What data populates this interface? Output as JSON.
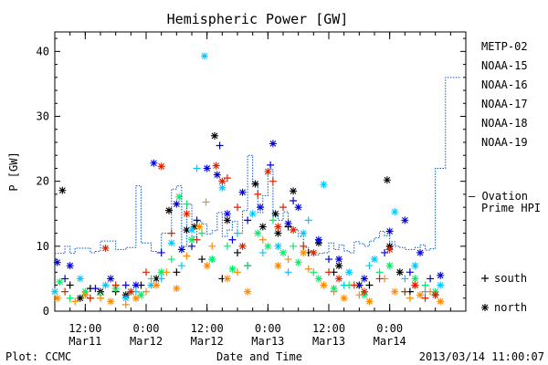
{
  "chart_data": {
    "type": "scatter",
    "title": "Hemispheric Power [GW]",
    "ylabel": "P [GW]",
    "xlabel": "Date and Time",
    "ylim": [
      0,
      43
    ],
    "yticks": [
      0,
      10,
      20,
      30,
      40
    ],
    "xlim": [
      0,
      81
    ],
    "x_unit": "hours since 2013-03-11 06:00",
    "xticks": [
      {
        "x": 6,
        "line1": "12:00",
        "line2": "Mar11"
      },
      {
        "x": 18,
        "line1": "0:00",
        "line2": "Mar12"
      },
      {
        "x": 30,
        "line1": "12:00",
        "line2": "Mar12"
      },
      {
        "x": 42,
        "line1": "0:00",
        "line2": "Mar13"
      },
      {
        "x": 54,
        "line1": "12:00",
        "line2": "Mar13"
      },
      {
        "x": 66,
        "line1": "0:00",
        "line2": "Mar14"
      }
    ],
    "footer_left": "Plot: CCMC",
    "footer_right": "2013/03/14 11:00:07",
    "markers_legend": [
      {
        "symbol": "+",
        "label": "south"
      },
      {
        "symbol": "*",
        "label": "north"
      }
    ],
    "series": [
      {
        "name": "METP-02",
        "color": "#000000",
        "north": [
          [
            1.5,
            18.6
          ],
          [
            20,
            5
          ],
          [
            22.5,
            15.5
          ],
          [
            27.5,
            13
          ],
          [
            31.5,
            27
          ],
          [
            34,
            14
          ],
          [
            39.5,
            19.6
          ],
          [
            41,
            13
          ],
          [
            43.5,
            15
          ],
          [
            47,
            18.5
          ],
          [
            52,
            10.5
          ],
          [
            56,
            7
          ],
          [
            60,
            4
          ],
          [
            65.5,
            20.2
          ],
          [
            68,
            6
          ],
          [
            71,
            4
          ],
          [
            9,
            3
          ],
          [
            14,
            2.5
          ],
          [
            5,
            2
          ],
          [
            26,
            12.5
          ],
          [
            44,
            12
          ],
          [
            66,
            10
          ]
        ],
        "south": [
          [
            3,
            4
          ],
          [
            7,
            3.5
          ],
          [
            12,
            3
          ],
          [
            17,
            4
          ],
          [
            24,
            6
          ],
          [
            29,
            8
          ],
          [
            36,
            9
          ],
          [
            46,
            13
          ],
          [
            50,
            9
          ],
          [
            55,
            6
          ],
          [
            62,
            4
          ],
          [
            70,
            3
          ],
          [
            75,
            2.5
          ],
          [
            33,
            5
          ],
          [
            38,
            7
          ]
        ]
      },
      {
        "name": "NOAA-15",
        "color": "#0000dd",
        "north": [
          [
            0.5,
            7.5
          ],
          [
            3,
            7
          ],
          [
            11,
            5
          ],
          [
            16,
            4
          ],
          [
            19.5,
            22.8
          ],
          [
            24,
            16.5
          ],
          [
            25,
            9.5
          ],
          [
            30,
            22
          ],
          [
            32,
            21
          ],
          [
            34,
            15
          ],
          [
            37,
            18.3
          ],
          [
            43,
            25.8
          ],
          [
            46,
            13.5
          ],
          [
            48,
            16
          ],
          [
            52,
            11
          ],
          [
            56,
            8
          ],
          [
            61,
            5
          ],
          [
            66,
            12.3
          ],
          [
            69,
            14
          ],
          [
            72,
            9
          ],
          [
            76,
            5.5
          ],
          [
            40.5,
            16
          ]
        ],
        "south": [
          [
            2,
            5
          ],
          [
            8,
            3.5
          ],
          [
            14,
            4
          ],
          [
            21,
            9
          ],
          [
            27,
            10
          ],
          [
            32.5,
            25.5
          ],
          [
            38,
            14
          ],
          [
            42.5,
            22.5
          ],
          [
            47,
            17
          ],
          [
            54,
            8
          ],
          [
            60,
            4
          ],
          [
            65,
            9
          ],
          [
            70,
            6
          ],
          [
            74,
            5
          ],
          [
            28,
            14
          ],
          [
            35,
            11
          ]
        ]
      },
      {
        "name": "NOAA-16",
        "color": "#00c8ff",
        "north": [
          [
            29.5,
            39.3
          ],
          [
            0,
            3
          ],
          [
            5,
            5
          ],
          [
            10,
            4
          ],
          [
            19,
            4
          ],
          [
            23,
            10.5
          ],
          [
            27,
            12.5
          ],
          [
            33,
            19
          ],
          [
            39,
            15
          ],
          [
            44,
            10
          ],
          [
            49,
            12
          ],
          [
            53,
            19.5
          ],
          [
            58,
            6
          ],
          [
            63,
            8
          ],
          [
            67,
            15.3
          ],
          [
            71,
            7
          ],
          [
            76,
            4
          ],
          [
            14,
            2
          ]
        ],
        "south": [
          [
            28,
            22
          ],
          [
            7,
            2
          ],
          [
            16,
            3
          ],
          [
            21,
            5
          ],
          [
            31,
            8
          ],
          [
            36,
            12
          ],
          [
            41,
            9
          ],
          [
            46,
            6
          ],
          [
            50,
            14
          ],
          [
            57,
            4
          ],
          [
            62,
            7
          ],
          [
            69,
            5
          ],
          [
            73,
            3
          ],
          [
            25,
            7
          ]
        ]
      },
      {
        "name": "NOAA-17",
        "color": "#00ee66",
        "north": [
          [
            24.5,
            17.6
          ],
          [
            1,
            4.5
          ],
          [
            6,
            3
          ],
          [
            12,
            3.5
          ],
          [
            17,
            2.5
          ],
          [
            21,
            6
          ],
          [
            27,
            11
          ],
          [
            31,
            8
          ],
          [
            35,
            6.5
          ],
          [
            40,
            12
          ],
          [
            45,
            9
          ],
          [
            48,
            7.5
          ],
          [
            52,
            5
          ],
          [
            55,
            3.5
          ],
          [
            61,
            2.5
          ],
          [
            66,
            7
          ],
          [
            71,
            5
          ],
          [
            75,
            3
          ],
          [
            42,
            10
          ]
        ],
        "south": [
          [
            26,
            16.5
          ],
          [
            3,
            2
          ],
          [
            9,
            2.5
          ],
          [
            15,
            3
          ],
          [
            19,
            5
          ],
          [
            23,
            8
          ],
          [
            29,
            12
          ],
          [
            34,
            10
          ],
          [
            38,
            7
          ],
          [
            43,
            14
          ],
          [
            47,
            10
          ],
          [
            51,
            6
          ],
          [
            58,
            4
          ],
          [
            64,
            6
          ],
          [
            69,
            3
          ],
          [
            73,
            4
          ]
        ]
      },
      {
        "name": "NOAA-18",
        "color": "#ff8800",
        "north": [
          [
            28.5,
            13
          ],
          [
            0.5,
            2
          ],
          [
            6,
            2.5
          ],
          [
            11,
            1.5
          ],
          [
            16,
            2
          ],
          [
            20,
            4
          ],
          [
            24,
            3.5
          ],
          [
            30,
            7
          ],
          [
            34,
            5
          ],
          [
            38,
            3
          ],
          [
            44,
            7
          ],
          [
            49,
            9
          ],
          [
            53,
            4
          ],
          [
            57,
            2
          ],
          [
            62,
            1.5
          ],
          [
            67,
            3
          ],
          [
            72,
            2.5
          ],
          [
            76,
            1.5
          ]
        ],
        "south": [
          [
            29.8,
            16.8
          ],
          [
            4,
            1.5
          ],
          [
            9,
            2
          ],
          [
            14,
            1
          ],
          [
            18,
            3
          ],
          [
            22,
            6
          ],
          [
            26,
            8.5
          ],
          [
            31,
            10
          ],
          [
            36,
            6
          ],
          [
            41,
            11
          ],
          [
            46,
            8
          ],
          [
            50,
            6.5
          ],
          [
            55,
            3
          ],
          [
            60,
            2.5
          ],
          [
            65,
            5
          ],
          [
            70,
            2
          ],
          [
            74,
            3
          ]
        ]
      },
      {
        "name": "NOAA-19",
        "color": "#dd2200",
        "north": [
          [
            10,
            9.7
          ],
          [
            21,
            22.3
          ],
          [
            31.8,
            22.4
          ],
          [
            33,
            20
          ],
          [
            42,
            21.5
          ],
          [
            47,
            12.5
          ],
          [
            51,
            9
          ],
          [
            56,
            5
          ],
          [
            61,
            3
          ],
          [
            66,
            9.5
          ],
          [
            71,
            4
          ],
          [
            75,
            2.5
          ],
          [
            26,
            15
          ],
          [
            37,
            10
          ],
          [
            44,
            13
          ],
          [
            15,
            3
          ]
        ],
        "south": [
          [
            34,
            20.5
          ],
          [
            2,
            3
          ],
          [
            7,
            2
          ],
          [
            12,
            4
          ],
          [
            18,
            6
          ],
          [
            23,
            12
          ],
          [
            28,
            11
          ],
          [
            36,
            16
          ],
          [
            40,
            18
          ],
          [
            43,
            20
          ],
          [
            45,
            16
          ],
          [
            49,
            10
          ],
          [
            54,
            6
          ],
          [
            59,
            4
          ],
          [
            64,
            5
          ],
          [
            69,
            3
          ],
          [
            73,
            2
          ]
        ]
      }
    ],
    "ovation_prime_hpi": {
      "name": "Ovation Prime HPI",
      "legend_dash": "— Ovation",
      "legend_line2": "Prime HPI",
      "color": "#0055cc",
      "points": [
        [
          0,
          8.9
        ],
        [
          2,
          8.9
        ],
        [
          3,
          10
        ],
        [
          4,
          8.9
        ],
        [
          7,
          9.7
        ],
        [
          8,
          9.0
        ],
        [
          9,
          9.2
        ],
        [
          12,
          10.8
        ],
        [
          14,
          9.5
        ],
        [
          16,
          9.8
        ],
        [
          17,
          19.3
        ],
        [
          19,
          10.5
        ],
        [
          20,
          9.2
        ],
        [
          21,
          9.0
        ],
        [
          23,
          12.0
        ],
        [
          24,
          18.8
        ],
        [
          25,
          19.3
        ],
        [
          26,
          10.0
        ],
        [
          27,
          16.5
        ],
        [
          28,
          11.5
        ],
        [
          29,
          13.8
        ],
        [
          30,
          13.4
        ],
        [
          31,
          11.9
        ],
        [
          32,
          12.4
        ],
        [
          33,
          15.2
        ],
        [
          34,
          11.5
        ],
        [
          35,
          12.5
        ],
        [
          36,
          13.8
        ],
        [
          37,
          12.0
        ],
        [
          38,
          15.5
        ],
        [
          39,
          24.0
        ],
        [
          40,
          19.8
        ],
        [
          41,
          15.2
        ],
        [
          42,
          17.8
        ],
        [
          43,
          21.8
        ],
        [
          44,
          14.7
        ],
        [
          45,
          14.0
        ],
        [
          46,
          15.3
        ],
        [
          47,
          13.0
        ],
        [
          48,
          12.6
        ],
        [
          49,
          11.5
        ],
        [
          50,
          9.8
        ],
        [
          51,
          9.2
        ],
        [
          52,
          8.7
        ],
        [
          53,
          8.9
        ],
        [
          54,
          9.0
        ],
        [
          55,
          10.5
        ],
        [
          56,
          9.5
        ],
        [
          57,
          10.2
        ],
        [
          58,
          9.3
        ],
        [
          59,
          9.0
        ],
        [
          60,
          10.7
        ],
        [
          61,
          10.4
        ],
        [
          62,
          10.0
        ],
        [
          63,
          10.8
        ],
        [
          64,
          11.3
        ],
        [
          65,
          12.3
        ],
        [
          66,
          11.6
        ],
        [
          67,
          10.7
        ],
        [
          68,
          10.0
        ],
        [
          69,
          9.8
        ],
        [
          70,
          9.5
        ],
        [
          71,
          9.5
        ],
        [
          72,
          9.8
        ],
        [
          73,
          10.2
        ],
        [
          74,
          9.4
        ],
        [
          75,
          9.6
        ],
        [
          77,
          22.0
        ],
        [
          79,
          36.0
        ],
        [
          80,
          36.0
        ]
      ]
    }
  }
}
